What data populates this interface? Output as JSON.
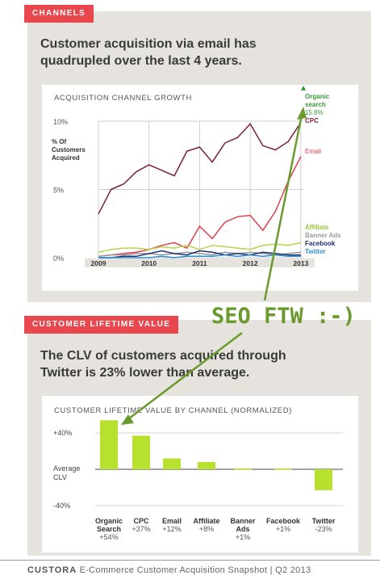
{
  "section1": {
    "tag": "CHANNELS",
    "headline_line1": "Customer acquisition via email has",
    "headline_line2": "quadrupled over the last 4 years.",
    "chart_title": "ACQUISITION CHANNEL GROWTH"
  },
  "section2": {
    "tag": "CUSTOMER LIFETIME VALUE",
    "headline_line1": "The CLV of customers acquired through",
    "headline_line2": "Twitter is 23% lower than average.",
    "chart_title": "CUSTOMER LIFETIME VALUE BY CHANNEL (NORMALIZED)"
  },
  "annotation": {
    "text": "SEO FTW :-)",
    "color": "#6a9a2e"
  },
  "footer": {
    "brand": "CUSTORA",
    "text": "E-Commerce Customer Acquisition Snapshot | Q2 2013"
  },
  "chart_data": [
    {
      "type": "line",
      "title": "ACQUISITION CHANNEL GROWTH",
      "ylabel": "% Of Customers Acquired",
      "ylim": [
        0,
        10
      ],
      "x_ticks": [
        "2009",
        "2010",
        "2011",
        "2012",
        "2013"
      ],
      "y_ticks": [
        "0%",
        "5%",
        "10%"
      ],
      "x": [
        2009.0,
        2009.25,
        2009.5,
        2009.75,
        2010.0,
        2010.25,
        2010.5,
        2010.75,
        2011.0,
        2011.25,
        2011.5,
        2011.75,
        2012.0,
        2012.25,
        2012.5,
        2012.75,
        2013.0
      ],
      "series": [
        {
          "name": "CPC",
          "color": "#7a1f3d",
          "values": [
            3.2,
            5.0,
            5.4,
            6.3,
            6.8,
            6.4,
            6.0,
            7.8,
            8.1,
            7.0,
            8.4,
            8.8,
            9.8,
            8.2,
            7.9,
            8.5,
            9.9
          ]
        },
        {
          "name": "Email",
          "color": "#e0404c",
          "values": [
            0.1,
            0.2,
            0.3,
            0.4,
            0.6,
            0.9,
            1.1,
            0.7,
            2.3,
            1.4,
            2.6,
            3.0,
            3.1,
            2.0,
            3.4,
            5.6,
            7.4
          ]
        },
        {
          "name": "Affiliate",
          "color": "#b7d44a",
          "values": [
            0.4,
            0.6,
            0.7,
            0.7,
            0.6,
            0.8,
            0.7,
            0.9,
            0.6,
            0.9,
            0.8,
            0.7,
            0.6,
            0.9,
            1.0,
            0.9,
            1.1
          ]
        },
        {
          "name": "Banner Ads",
          "color": "#9a9a9a",
          "values": [
            0.1,
            0.2,
            0.2,
            0.3,
            0.3,
            0.2,
            0.3,
            0.4,
            0.3,
            0.2,
            0.4,
            0.3,
            0.4,
            0.3,
            0.2,
            0.3,
            0.4
          ]
        },
        {
          "name": "Facebook",
          "color": "#1f2f6f",
          "values": [
            0.0,
            0.0,
            0.1,
            0.1,
            0.3,
            0.5,
            0.3,
            0.2,
            0.5,
            0.4,
            0.2,
            0.3,
            0.2,
            0.4,
            0.3,
            0.2,
            0.2
          ]
        },
        {
          "name": "Twitter",
          "color": "#2e8fd0",
          "values": [
            0.0,
            0.0,
            0.0,
            0.0,
            0.0,
            0.1,
            0.0,
            0.1,
            0.1,
            0.1,
            0.2,
            0.1,
            0.2,
            0.1,
            0.2,
            0.1,
            0.1
          ]
        }
      ],
      "organic_search": {
        "name": "Organic search",
        "value_label": "15.8%",
        "color": "#3a9a3a"
      }
    },
    {
      "type": "bar",
      "title": "CUSTOMER LIFETIME VALUE BY CHANNEL (NORMALIZED)",
      "ylim": [
        -40,
        40
      ],
      "y_ticks": [
        "+40%",
        "Average CLV",
        "-40%"
      ],
      "categories": [
        "Organic Search",
        "CPC",
        "Email",
        "Affiliate",
        "Banner Ads",
        "Facebook",
        "Twitter"
      ],
      "category_lines": [
        [
          "Organic",
          "Search"
        ],
        [
          "CPC"
        ],
        [
          "Email"
        ],
        [
          "Affiliate"
        ],
        [
          "Banner",
          "Ads"
        ],
        [
          "Facebook"
        ],
        [
          "Twitter"
        ]
      ],
      "value_labels": [
        "+54%",
        "+37%",
        "+12%",
        "+8%",
        "+1%",
        "+1%",
        "-23%"
      ],
      "values": [
        54,
        37,
        12,
        8,
        1,
        1,
        -23
      ],
      "bar_color": "#b8e02e"
    }
  ]
}
